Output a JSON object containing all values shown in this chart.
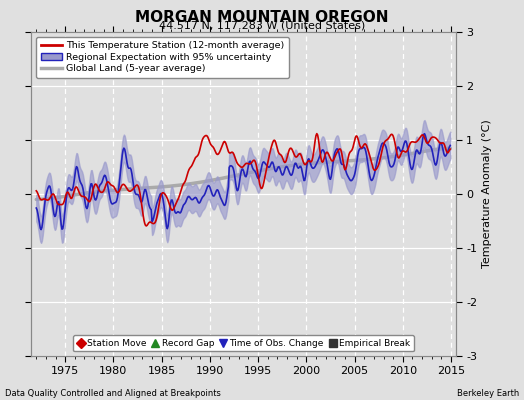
{
  "title": "MORGAN MOUNTAIN OREGON",
  "subtitle": "44.517 N, 117.283 W (United States)",
  "ylabel": "Temperature Anomaly (°C)",
  "xlim": [
    1971.5,
    2015.5
  ],
  "ylim": [
    -3,
    3
  ],
  "yticks": [
    -3,
    -2,
    -1,
    0,
    1,
    2,
    3
  ],
  "xticks": [
    1975,
    1980,
    1985,
    1990,
    1995,
    2000,
    2005,
    2010,
    2015
  ],
  "background_color": "#e0e0e0",
  "plot_bg_color": "#e0e0e0",
  "grid_color": "#ffffff",
  "station_color": "#cc0000",
  "regional_color": "#2222bb",
  "regional_fill_color": "#9999cc",
  "global_color": "#aaaaaa",
  "global_linewidth": 2.5,
  "station_linewidth": 1.2,
  "regional_linewidth": 1.2,
  "footer_left": "Data Quality Controlled and Aligned at Breakpoints",
  "footer_right": "Berkeley Earth",
  "legend1_labels": [
    "This Temperature Station (12-month average)",
    "Regional Expectation with 95% uncertainty",
    "Global Land (5-year average)"
  ],
  "legend2_labels": [
    "Station Move",
    "Record Gap",
    "Time of Obs. Change",
    "Empirical Break"
  ],
  "legend2_markers": [
    "D",
    "^",
    "v",
    "s"
  ],
  "legend2_colors": [
    "#cc0000",
    "#228822",
    "#2222bb",
    "#333333"
  ]
}
